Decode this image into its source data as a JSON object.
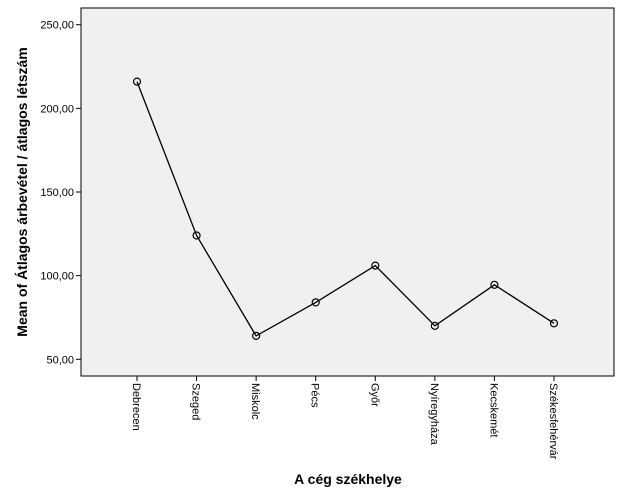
{
  "chart_data": {
    "type": "line",
    "title": "",
    "xlabel": "A cég székhelye",
    "ylabel": "Mean of Átlagos árbevétel / átlagos létszám",
    "categories": [
      "Debrecen",
      "Szeged",
      "Miskolc",
      "Pécs",
      "Győr",
      "Nyíregyháza",
      "Kecskemét",
      "Székesfehérvár"
    ],
    "series": [
      {
        "values": [
          216,
          124,
          64,
          84,
          106,
          70,
          94.5,
          71.5
        ]
      }
    ],
    "ylim": [
      40,
      260
    ],
    "yticks": [
      50,
      100,
      150,
      200,
      250
    ],
    "ytick_labels": [
      "50,00",
      "100,00",
      "150,00",
      "200,00",
      "250,00"
    ],
    "grid": false,
    "legend": "none",
    "colors": {
      "plot_bg": "#f0f0f0",
      "line": "#000000",
      "marker": "#000000",
      "frame": "#000000"
    }
  }
}
